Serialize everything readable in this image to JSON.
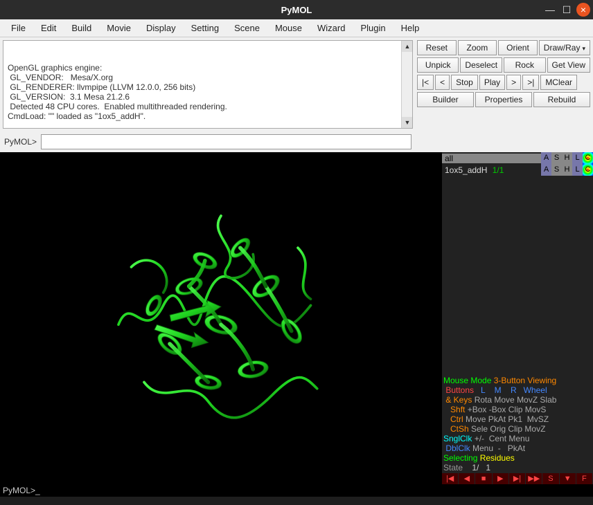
{
  "window": {
    "title": "PyMOL"
  },
  "menubar": [
    "File",
    "Edit",
    "Build",
    "Movie",
    "Display",
    "Setting",
    "Scene",
    "Mouse",
    "Wizard",
    "Plugin",
    "Help"
  ],
  "console_lines": [
    "OpenGL graphics engine:",
    " GL_VENDOR:   Mesa/X.org",
    " GL_RENDERER: llvmpipe (LLVM 12.0.0, 256 bits)",
    " GL_VERSION:  3.1 Mesa 21.2.6",
    " Detected 48 CPU cores.  Enabled multithreaded rendering.",
    "",
    "CmdLoad: \"\" loaded as \"1ox5_addH\"."
  ],
  "buttons": {
    "r1": [
      "Reset",
      "Zoom",
      "Orient",
      "Draw/Ray"
    ],
    "r2": [
      "Unpick",
      "Deselect",
      "Rock",
      "Get View"
    ],
    "r3": [
      "|<",
      "<",
      "Stop",
      "Play",
      ">",
      ">|",
      "MClear"
    ],
    "r4": [
      "Builder",
      "Properties",
      "Rebuild"
    ]
  },
  "prompt_label": "PyMOL>",
  "objects": {
    "all": {
      "name": "all"
    },
    "obj1": {
      "name": "1ox5_addH",
      "state": "1/1"
    }
  },
  "ashlc": [
    "A",
    "S",
    "H",
    "L",
    "C"
  ],
  "mouse_help": {
    "title_l": "Mouse Mode",
    "title_r": "3-Button Viewing",
    "hdr_l": "Buttons",
    "hdr_cols": "  L    M    R   Wheel",
    "rows": [
      {
        "k": "& Keys",
        "v": "Rota Move MovZ Slab"
      },
      {
        "k": "Shft",
        "v": "+Box -Box Clip MovS"
      },
      {
        "k": "Ctrl",
        "v": "Move PkAt Pk1  MvSZ"
      },
      {
        "k": "CtSh",
        "v": "Sele Orig Clip MovZ"
      }
    ],
    "snglclk_l": "SnglClk",
    "snglclk_r": "+/-  Cent Menu",
    "dblclk_l": "DblClk",
    "dblclk_r": "Menu  -   PkAt",
    "selecting_l": "Selecting",
    "selecting_r": "Residues",
    "state_l": "State",
    "state_v": "1/   1"
  },
  "vcr": [
    "|◀",
    "◀",
    "■",
    "▶",
    "▶|",
    "▶▶",
    "S",
    "▼",
    "F"
  ],
  "bottom_prompt": "PyMOL>_",
  "colors": {
    "bg": "#000000",
    "protein": "#1fd11f",
    "protein_dark": "#0f7f0f",
    "titlebar": "#2c2c2c",
    "close": "#e95420",
    "panel": "#f0f0f0"
  }
}
